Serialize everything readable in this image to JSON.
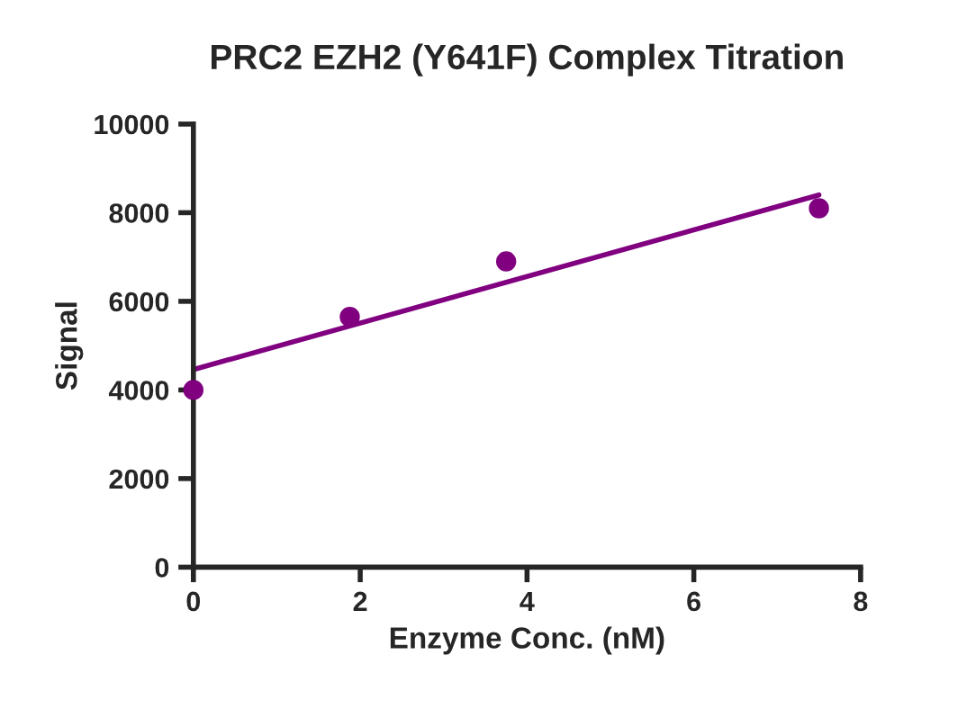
{
  "chart_data": {
    "type": "scatter",
    "title": "PRC2 EZH2 (Y641F) Complex Titration",
    "xlabel": "Enzyme Conc. (nM)",
    "ylabel": "Signal",
    "series": [
      {
        "color": "#800080",
        "x": [
          0,
          1.875,
          3.75,
          7.5
        ],
        "values": [
          4000,
          5650,
          6900,
          8100
        ],
        "marker": "circle"
      },
      {
        "type": "line",
        "color": "#800080",
        "x": [
          0,
          7.5
        ],
        "values": [
          4460,
          8400
        ],
        "marker": "none"
      }
    ],
    "xlim": [
      0,
      8
    ],
    "xticks": [
      0,
      2,
      4,
      6,
      8
    ],
    "ylim": [
      0,
      10000
    ],
    "yticks": [
      0,
      2000,
      4000,
      6000,
      8000,
      10000
    ],
    "grid": false,
    "legend": false
  }
}
